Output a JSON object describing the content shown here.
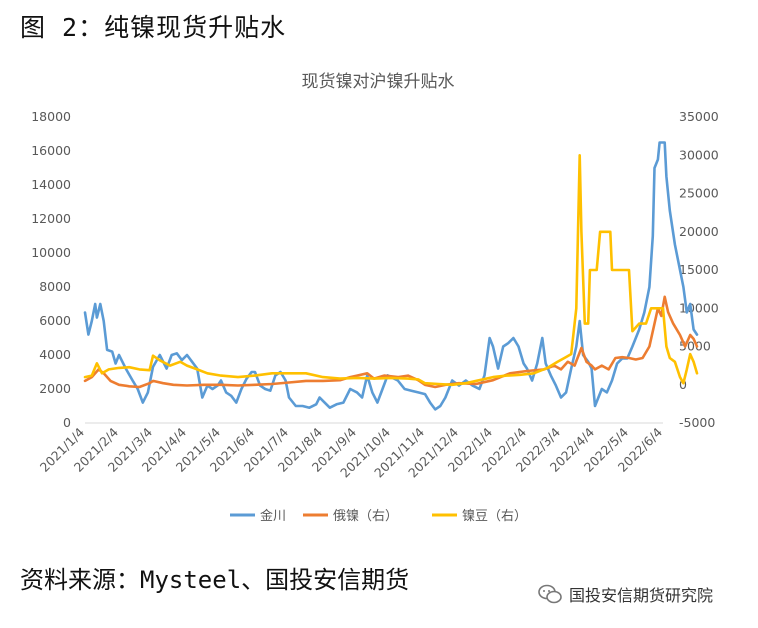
{
  "header": {
    "title": "图 2：纯镍现货升贴水"
  },
  "footer": {
    "source": "资料来源：Mysteel、国投安信期货"
  },
  "watermark": {
    "text": "国投安信期货研究院"
  },
  "colors": {
    "jinchuan": "#5B9BD5",
    "russian": "#ED7D31",
    "bean": "#FFC000"
  },
  "chart_data": {
    "type": "line",
    "title": "现货镍对沪镍升贴水",
    "x": [
      "2021/1/4",
      "2021/2/4",
      "2021/3/4",
      "2021/4/4",
      "2021/5/4",
      "2021/6/4",
      "2021/7/4",
      "2021/8/4",
      "2021/9/4",
      "2021/10/4",
      "2021/11/4",
      "2021/12/4",
      "2022/1/4",
      "2022/2/4",
      "2022/3/4",
      "2022/4/4",
      "2022/5/4",
      "2022/6/4"
    ],
    "y_left": {
      "min": 0,
      "max": 18000,
      "ticks": [
        0,
        2000,
        4000,
        6000,
        8000,
        10000,
        12000,
        14000,
        16000,
        18000
      ]
    },
    "y_right": {
      "min": -5000,
      "max": 35000,
      "ticks": [
        -5000,
        0,
        5000,
        10000,
        15000,
        20000,
        25000,
        30000,
        35000
      ]
    },
    "grid": false,
    "legend_position": "bottom",
    "series": [
      {
        "name": "金川",
        "axis": "left",
        "color": "#5B9BD5",
        "points": [
          [
            0,
            6500
          ],
          [
            0.1,
            5200
          ],
          [
            0.2,
            6000
          ],
          [
            0.3,
            7000
          ],
          [
            0.35,
            6200
          ],
          [
            0.45,
            7000
          ],
          [
            0.55,
            6000
          ],
          [
            0.65,
            4300
          ],
          [
            0.8,
            4200
          ],
          [
            0.9,
            3500
          ],
          [
            1.0,
            4000
          ],
          [
            1.2,
            3200
          ],
          [
            1.4,
            2500
          ],
          [
            1.55,
            2000
          ],
          [
            1.7,
            1200
          ],
          [
            1.85,
            1800
          ],
          [
            2.0,
            3300
          ],
          [
            2.2,
            4000
          ],
          [
            2.4,
            3200
          ],
          [
            2.55,
            4000
          ],
          [
            2.7,
            4100
          ],
          [
            2.85,
            3700
          ],
          [
            3.0,
            4000
          ],
          [
            3.15,
            3600
          ],
          [
            3.3,
            3200
          ],
          [
            3.45,
            1500
          ],
          [
            3.6,
            2200
          ],
          [
            3.75,
            2000
          ],
          [
            3.9,
            2200
          ],
          [
            4.0,
            2500
          ],
          [
            4.15,
            1800
          ],
          [
            4.3,
            1600
          ],
          [
            4.45,
            1200
          ],
          [
            4.6,
            2000
          ],
          [
            4.75,
            2600
          ],
          [
            4.9,
            3000
          ],
          [
            5.0,
            3000
          ],
          [
            5.15,
            2200
          ],
          [
            5.3,
            2000
          ],
          [
            5.45,
            1900
          ],
          [
            5.6,
            2800
          ],
          [
            5.75,
            3000
          ],
          [
            5.9,
            2500
          ],
          [
            6.0,
            1500
          ],
          [
            6.2,
            1000
          ],
          [
            6.4,
            1000
          ],
          [
            6.6,
            900
          ],
          [
            6.8,
            1100
          ],
          [
            6.9,
            1500
          ],
          [
            7.0,
            1300
          ],
          [
            7.2,
            900
          ],
          [
            7.4,
            1100
          ],
          [
            7.6,
            1200
          ],
          [
            7.8,
            2000
          ],
          [
            8.0,
            1800
          ],
          [
            8.15,
            1500
          ],
          [
            8.3,
            2800
          ],
          [
            8.45,
            1800
          ],
          [
            8.6,
            1200
          ],
          [
            8.75,
            2000
          ],
          [
            8.9,
            2800
          ],
          [
            9.0,
            2700
          ],
          [
            9.2,
            2500
          ],
          [
            9.4,
            2000
          ],
          [
            9.6,
            1900
          ],
          [
            9.8,
            1800
          ],
          [
            10.0,
            1700
          ],
          [
            10.15,
            1200
          ],
          [
            10.3,
            800
          ],
          [
            10.45,
            1000
          ],
          [
            10.6,
            1500
          ],
          [
            10.8,
            2500
          ],
          [
            11.0,
            2200
          ],
          [
            11.2,
            2500
          ],
          [
            11.4,
            2200
          ],
          [
            11.6,
            2000
          ],
          [
            11.75,
            2800
          ],
          [
            11.9,
            5000
          ],
          [
            12.0,
            4500
          ],
          [
            12.15,
            3200
          ],
          [
            12.3,
            4500
          ],
          [
            12.45,
            4700
          ],
          [
            12.6,
            5000
          ],
          [
            12.75,
            4500
          ],
          [
            12.9,
            3500
          ],
          [
            13.0,
            3200
          ],
          [
            13.15,
            2500
          ],
          [
            13.3,
            3500
          ],
          [
            13.45,
            5000
          ],
          [
            13.55,
            3500
          ],
          [
            13.7,
            2800
          ],
          [
            13.85,
            2200
          ],
          [
            14.0,
            1500
          ],
          [
            14.15,
            1800
          ],
          [
            14.3,
            3200
          ],
          [
            14.45,
            4500
          ],
          [
            14.55,
            6000
          ],
          [
            14.65,
            4000
          ],
          [
            14.8,
            3600
          ],
          [
            14.9,
            3200
          ],
          [
            15.0,
            1000
          ],
          [
            15.1,
            1500
          ],
          [
            15.2,
            2000
          ],
          [
            15.35,
            1800
          ],
          [
            15.5,
            2500
          ],
          [
            15.65,
            3500
          ],
          [
            15.8,
            3800
          ],
          [
            15.95,
            3800
          ],
          [
            16.1,
            4500
          ],
          [
            16.3,
            5500
          ],
          [
            16.45,
            6500
          ],
          [
            16.6,
            8000
          ],
          [
            16.7,
            11000
          ],
          [
            16.75,
            15000
          ],
          [
            16.85,
            15500
          ],
          [
            16.9,
            16500
          ],
          [
            17.0,
            16500
          ],
          [
            17.05,
            16500
          ],
          [
            17.1,
            14500
          ],
          [
            17.2,
            12500
          ],
          [
            17.35,
            10500
          ],
          [
            17.5,
            9000
          ],
          [
            17.6,
            8000
          ],
          [
            17.7,
            6500
          ],
          [
            17.8,
            7000
          ],
          [
            17.9,
            5500
          ],
          [
            18.0,
            5200
          ]
        ]
      },
      {
        "name": "俄镍（右）",
        "axis": "right",
        "color": "#ED7D31",
        "points": [
          [
            0,
            500
          ],
          [
            0.2,
            1000
          ],
          [
            0.4,
            2000
          ],
          [
            0.55,
            1500
          ],
          [
            0.75,
            500
          ],
          [
            1.0,
            0
          ],
          [
            1.3,
            -200
          ],
          [
            1.6,
            -300
          ],
          [
            1.9,
            200
          ],
          [
            2.0,
            500
          ],
          [
            2.3,
            200
          ],
          [
            2.6,
            0
          ],
          [
            3.0,
            -100
          ],
          [
            3.5,
            0
          ],
          [
            4.0,
            0
          ],
          [
            4.5,
            -100
          ],
          [
            5.0,
            0
          ],
          [
            5.5,
            100
          ],
          [
            6.0,
            300
          ],
          [
            6.5,
            500
          ],
          [
            7.0,
            500
          ],
          [
            7.5,
            600
          ],
          [
            7.8,
            1000
          ],
          [
            8.0,
            1200
          ],
          [
            8.3,
            1500
          ],
          [
            8.5,
            800
          ],
          [
            8.8,
            1200
          ],
          [
            9.2,
            1000
          ],
          [
            9.5,
            1200
          ],
          [
            9.8,
            600
          ],
          [
            10.0,
            0
          ],
          [
            10.3,
            -300
          ],
          [
            10.6,
            0
          ],
          [
            11.0,
            200
          ],
          [
            11.5,
            100
          ],
          [
            12.0,
            600
          ],
          [
            12.5,
            1500
          ],
          [
            13.0,
            1800
          ],
          [
            13.5,
            2000
          ],
          [
            13.8,
            2500
          ],
          [
            14.0,
            2000
          ],
          [
            14.2,
            3000
          ],
          [
            14.4,
            2500
          ],
          [
            14.6,
            4800
          ],
          [
            14.75,
            3000
          ],
          [
            14.9,
            2500
          ],
          [
            15.0,
            2000
          ],
          [
            15.2,
            2500
          ],
          [
            15.4,
            2000
          ],
          [
            15.6,
            3500
          ],
          [
            15.8,
            3600
          ],
          [
            16.0,
            3500
          ],
          [
            16.2,
            3300
          ],
          [
            16.4,
            3500
          ],
          [
            16.6,
            5000
          ],
          [
            16.75,
            8000
          ],
          [
            16.85,
            10000
          ],
          [
            16.95,
            9000
          ],
          [
            17.05,
            11500
          ],
          [
            17.15,
            9500
          ],
          [
            17.3,
            8000
          ],
          [
            17.5,
            6500
          ],
          [
            17.65,
            5000
          ],
          [
            17.8,
            6500
          ],
          [
            17.9,
            6000
          ],
          [
            18.0,
            5000
          ]
        ]
      },
      {
        "name": "镍豆（右）",
        "axis": "right",
        "color": "#FFC000",
        "points": [
          [
            0,
            1000
          ],
          [
            0.2,
            1200
          ],
          [
            0.35,
            2800
          ],
          [
            0.5,
            1500
          ],
          [
            0.7,
            2000
          ],
          [
            1.0,
            2200
          ],
          [
            1.3,
            2300
          ],
          [
            1.6,
            2000
          ],
          [
            1.9,
            1900
          ],
          [
            2.0,
            3800
          ],
          [
            2.2,
            3200
          ],
          [
            2.5,
            2500
          ],
          [
            2.8,
            3000
          ],
          [
            3.0,
            2500
          ],
          [
            3.3,
            2000
          ],
          [
            3.6,
            1500
          ],
          [
            4.0,
            1200
          ],
          [
            4.5,
            1000
          ],
          [
            5.0,
            1200
          ],
          [
            5.5,
            1500
          ],
          [
            6.0,
            1500
          ],
          [
            6.5,
            1500
          ],
          [
            7.0,
            1000
          ],
          [
            7.5,
            800
          ],
          [
            8.0,
            900
          ],
          [
            8.5,
            800
          ],
          [
            9.0,
            900
          ],
          [
            9.5,
            800
          ],
          [
            9.8,
            700
          ],
          [
            10.0,
            200
          ],
          [
            10.4,
            100
          ],
          [
            10.8,
            0
          ],
          [
            11.2,
            200
          ],
          [
            11.6,
            600
          ],
          [
            12.0,
            1000
          ],
          [
            12.4,
            1200
          ],
          [
            12.8,
            1300
          ],
          [
            13.2,
            1500
          ],
          [
            13.6,
            2200
          ],
          [
            13.9,
            3000
          ],
          [
            14.1,
            3500
          ],
          [
            14.3,
            4000
          ],
          [
            14.45,
            10000
          ],
          [
            14.55,
            30000
          ],
          [
            14.6,
            20000
          ],
          [
            14.7,
            8000
          ],
          [
            14.8,
            8000
          ],
          [
            14.85,
            15000
          ],
          [
            14.95,
            15000
          ],
          [
            15.05,
            15000
          ],
          [
            15.15,
            20000
          ],
          [
            15.35,
            20000
          ],
          [
            15.45,
            20000
          ],
          [
            15.5,
            15000
          ],
          [
            15.7,
            15000
          ],
          [
            15.9,
            15000
          ],
          [
            16.0,
            15000
          ],
          [
            16.1,
            7000
          ],
          [
            16.3,
            8000
          ],
          [
            16.5,
            8000
          ],
          [
            16.65,
            10000
          ],
          [
            16.75,
            10000
          ],
          [
            16.85,
            10000
          ],
          [
            17.0,
            10000
          ],
          [
            17.1,
            5000
          ],
          [
            17.2,
            3500
          ],
          [
            17.35,
            3000
          ],
          [
            17.5,
            1000
          ],
          [
            17.6,
            200
          ],
          [
            17.7,
            2000
          ],
          [
            17.8,
            4000
          ],
          [
            17.9,
            3000
          ],
          [
            18.0,
            1500
          ]
        ]
      }
    ]
  }
}
